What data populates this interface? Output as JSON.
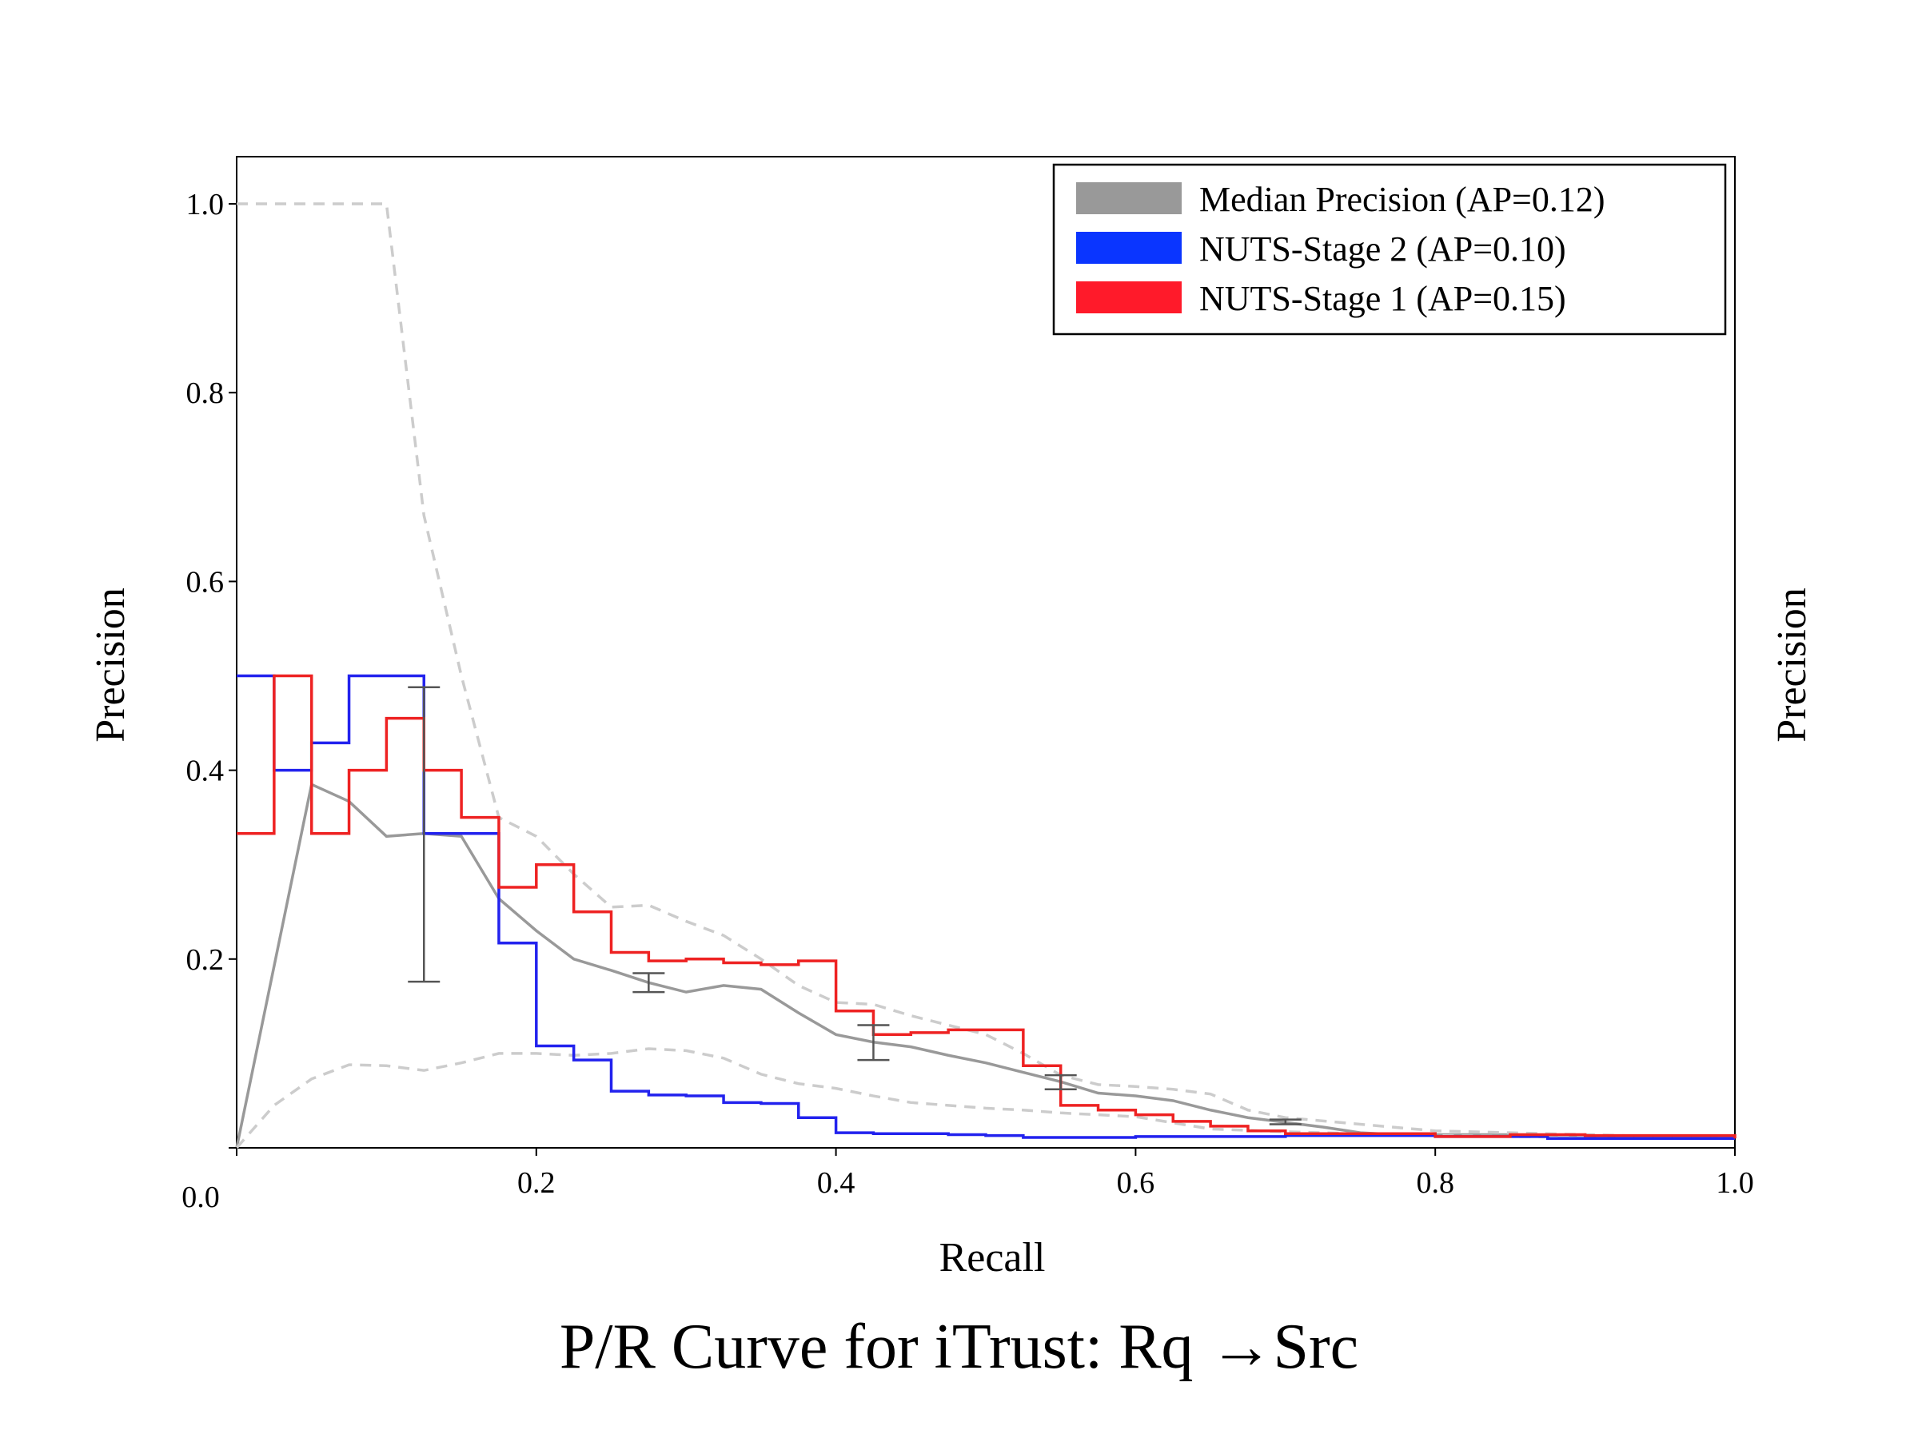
{
  "chart_data": {
    "type": "line",
    "title": "P/R Curve for iTrust: Rq →Src",
    "xlabel": "Recall",
    "ylabel": "Precision",
    "ylabel_right": "Precision",
    "xlim": [
      0,
      1
    ],
    "ylim": [
      0,
      1.05
    ],
    "x_ticks": [
      {
        "value": 0.0,
        "label": "0.0"
      },
      {
        "value": 0.2,
        "label": "0.2"
      },
      {
        "value": 0.4,
        "label": "0.4"
      },
      {
        "value": 0.6,
        "label": "0.6"
      },
      {
        "value": 0.8,
        "label": "0.8"
      },
      {
        "value": 1.0,
        "label": "1.0"
      }
    ],
    "y_ticks": [
      {
        "value": 0.2,
        "label": "0.2"
      },
      {
        "value": 0.4,
        "label": "0.4"
      },
      {
        "value": 0.6,
        "label": "0.6"
      },
      {
        "value": 0.8,
        "label": "0.8"
      },
      {
        "value": 1.0,
        "label": "1.0"
      }
    ],
    "grid": false,
    "legend_position": "top-right",
    "legend": [
      {
        "label": "Median Precision (AP=0.12)",
        "color": "#999999"
      },
      {
        "label": "NUTS-Stage 2 (AP=0.10)",
        "color": "#0a35ff"
      },
      {
        "label": "NUTS-Stage 1 (AP=0.15)",
        "color": "#ff1a2a"
      }
    ],
    "series": [
      {
        "name": "Median Precision (AP=0.12)",
        "color": "#999999",
        "style": "solid",
        "x": [
          0.0,
          0.05,
          0.075,
          0.1,
          0.125,
          0.15,
          0.175,
          0.2,
          0.225,
          0.25,
          0.275,
          0.3,
          0.325,
          0.35,
          0.375,
          0.4,
          0.425,
          0.45,
          0.475,
          0.5,
          0.525,
          0.55,
          0.575,
          0.6,
          0.625,
          0.65,
          0.675,
          0.7,
          0.725,
          0.75,
          0.775,
          0.8,
          0.85,
          0.9,
          0.95,
          1.0
        ],
        "y": [
          0.0,
          0.385,
          0.367,
          0.33,
          0.333,
          0.33,
          0.264,
          0.23,
          0.2,
          0.188,
          0.175,
          0.165,
          0.172,
          0.168,
          0.143,
          0.12,
          0.112,
          0.107,
          0.098,
          0.09,
          0.08,
          0.07,
          0.058,
          0.055,
          0.05,
          0.04,
          0.032,
          0.027,
          0.022,
          0.016,
          0.014,
          0.014,
          0.014,
          0.013,
          0.012,
          0.01
        ]
      },
      {
        "name": "Percentile band (upper)",
        "color": "#cccccc",
        "style": "dashed",
        "x": [
          0.0,
          0.025,
          0.05,
          0.075,
          0.1,
          0.125,
          0.15,
          0.175,
          0.2,
          0.225,
          0.25,
          0.275,
          0.3,
          0.325,
          0.35,
          0.375,
          0.4,
          0.425,
          0.45,
          0.475,
          0.5,
          0.525,
          0.55,
          0.575,
          0.6,
          0.625,
          0.65,
          0.675,
          0.7,
          0.75,
          0.8,
          0.9,
          1.0
        ],
        "y": [
          1.0,
          1.0,
          1.0,
          1.0,
          1.0,
          0.67,
          0.5,
          0.35,
          0.33,
          0.29,
          0.255,
          0.257,
          0.24,
          0.225,
          0.2,
          0.172,
          0.154,
          0.152,
          0.14,
          0.13,
          0.12,
          0.1,
          0.077,
          0.067,
          0.065,
          0.062,
          0.057,
          0.04,
          0.032,
          0.025,
          0.018,
          0.014,
          0.01
        ]
      },
      {
        "name": "Percentile band (lower)",
        "color": "#cccccc",
        "style": "dashed",
        "x": [
          0.0,
          0.025,
          0.05,
          0.075,
          0.1,
          0.125,
          0.15,
          0.175,
          0.2,
          0.225,
          0.25,
          0.275,
          0.3,
          0.325,
          0.35,
          0.375,
          0.4,
          0.425,
          0.45,
          0.475,
          0.5,
          0.525,
          0.55,
          0.6,
          0.65,
          0.7,
          0.8,
          0.9,
          1.0
        ],
        "y": [
          0.0,
          0.045,
          0.073,
          0.088,
          0.087,
          0.082,
          0.09,
          0.1,
          0.1,
          0.098,
          0.1,
          0.105,
          0.103,
          0.095,
          0.078,
          0.068,
          0.063,
          0.055,
          0.048,
          0.045,
          0.042,
          0.04,
          0.037,
          0.033,
          0.02,
          0.017,
          0.013,
          0.011,
          0.01
        ]
      },
      {
        "name": "NUTS-Stage 2 (AP=0.10)",
        "color": "#2222ee",
        "style": "step",
        "x": [
          0.0,
          0.025,
          0.05,
          0.075,
          0.1,
          0.125,
          0.15,
          0.175,
          0.2,
          0.225,
          0.25,
          0.275,
          0.3,
          0.325,
          0.35,
          0.375,
          0.4,
          0.425,
          0.45,
          0.475,
          0.5,
          0.525,
          0.55,
          0.6,
          0.65,
          0.7,
          0.8,
          0.875,
          1.0
        ],
        "y": [
          0.5,
          0.4,
          0.429,
          0.5,
          0.5,
          0.333,
          0.333,
          0.217,
          0.108,
          0.093,
          0.06,
          0.056,
          0.055,
          0.048,
          0.047,
          0.032,
          0.016,
          0.015,
          0.015,
          0.014,
          0.013,
          0.011,
          0.011,
          0.012,
          0.012,
          0.013,
          0.012,
          0.01,
          0.01
        ]
      },
      {
        "name": "NUTS-Stage 1 (AP=0.15)",
        "color": "#ee2222",
        "style": "step",
        "x": [
          0.0,
          0.025,
          0.05,
          0.075,
          0.1,
          0.125,
          0.15,
          0.175,
          0.2,
          0.225,
          0.25,
          0.275,
          0.3,
          0.325,
          0.35,
          0.375,
          0.4,
          0.425,
          0.45,
          0.475,
          0.5,
          0.525,
          0.55,
          0.575,
          0.6,
          0.625,
          0.65,
          0.675,
          0.7,
          0.8,
          0.85,
          0.9,
          1.0
        ],
        "y": [
          0.333,
          0.5,
          0.333,
          0.4,
          0.455,
          0.4,
          0.35,
          0.276,
          0.3,
          0.25,
          0.207,
          0.198,
          0.2,
          0.196,
          0.194,
          0.198,
          0.145,
          0.12,
          0.122,
          0.125,
          0.125,
          0.087,
          0.045,
          0.04,
          0.035,
          0.028,
          0.023,
          0.018,
          0.015,
          0.012,
          0.014,
          0.013,
          0.01
        ]
      }
    ],
    "error_bars": [
      {
        "x": 0.125,
        "low": 0.176,
        "high": 0.488
      },
      {
        "x": 0.275,
        "low": 0.165,
        "high": 0.185
      },
      {
        "x": 0.425,
        "low": 0.093,
        "high": 0.13
      },
      {
        "x": 0.55,
        "low": 0.062,
        "high": 0.077
      },
      {
        "x": 0.7,
        "low": 0.025,
        "high": 0.03
      }
    ]
  }
}
